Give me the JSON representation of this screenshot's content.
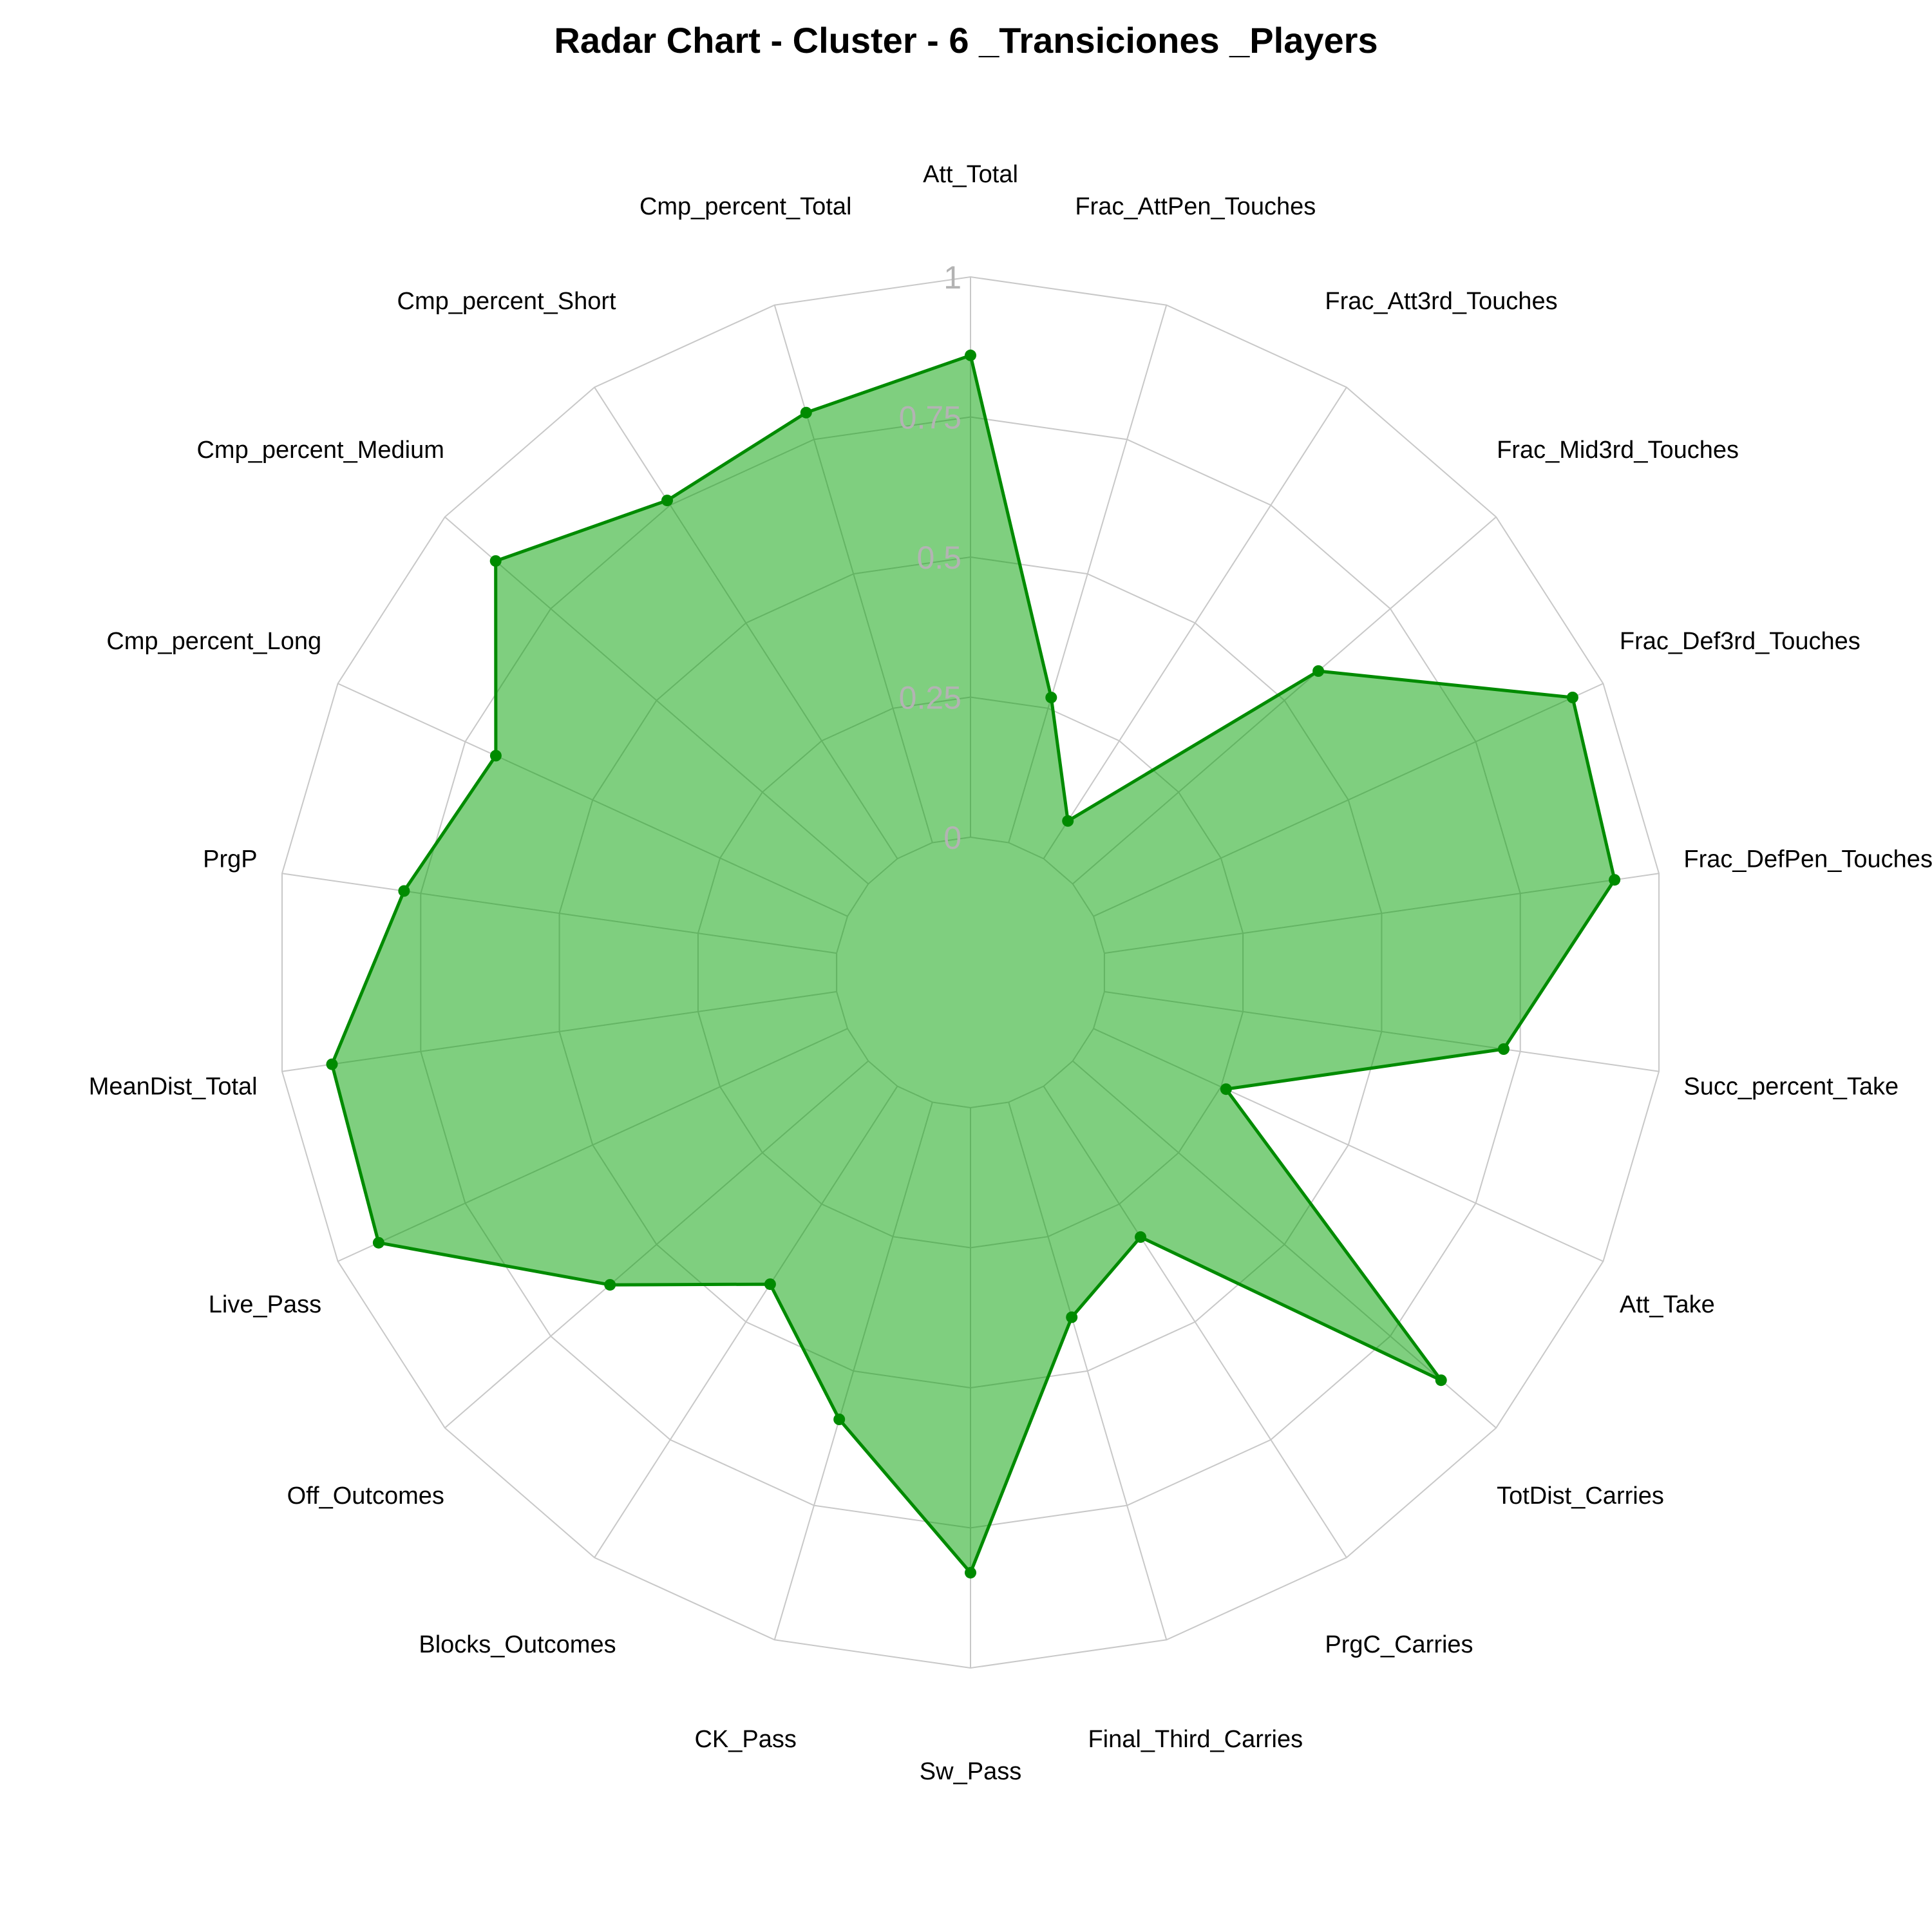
{
  "chart_data": {
    "type": "radar",
    "title": "Radar Chart - Cluster - 6 _Transiciones _Players",
    "axes": [
      "Att_Total",
      "Frac_AttPen_Touches",
      "Frac_Att3rd_Touches",
      "Frac_Mid3rd_Touches",
      "Frac_Def3rd_Touches",
      "Frac_DefPen_Touches",
      "Succ_percent_Take",
      "Att_Take",
      "TotDist_Carries",
      "PrgC_Carries",
      "Final_Third_Carries",
      "Sw_Pass",
      "CK_Pass",
      "Blocks_Outcomes",
      "Off_Outcomes",
      "Live_Pass",
      "MeanDist_Total",
      "PrgP",
      "Cmp_percent_Long",
      "Cmp_percent_Medium",
      "Cmp_percent_Short",
      "Cmp_percent_Total"
    ],
    "series": [
      {
        "values": [
          0.86,
          0.27,
          0.08,
          0.58,
          0.94,
          0.92,
          0.72,
          0.26,
          0.87,
          0.32,
          0.4,
          0.83,
          0.59,
          0.42,
          0.61,
          0.92,
          0.91,
          0.78,
          0.69,
          0.88,
          0.76,
          0.8
        ]
      }
    ],
    "r_ticks": [
      "0",
      "0.25",
      "0.5",
      "0.75",
      "1"
    ],
    "r_range": [
      0,
      1
    ],
    "grid": true,
    "colors": {
      "line": "#008b00",
      "fill": "#00a000",
      "grid": "#c8c8c8",
      "tick_label": "#b3b3b3"
    }
  }
}
